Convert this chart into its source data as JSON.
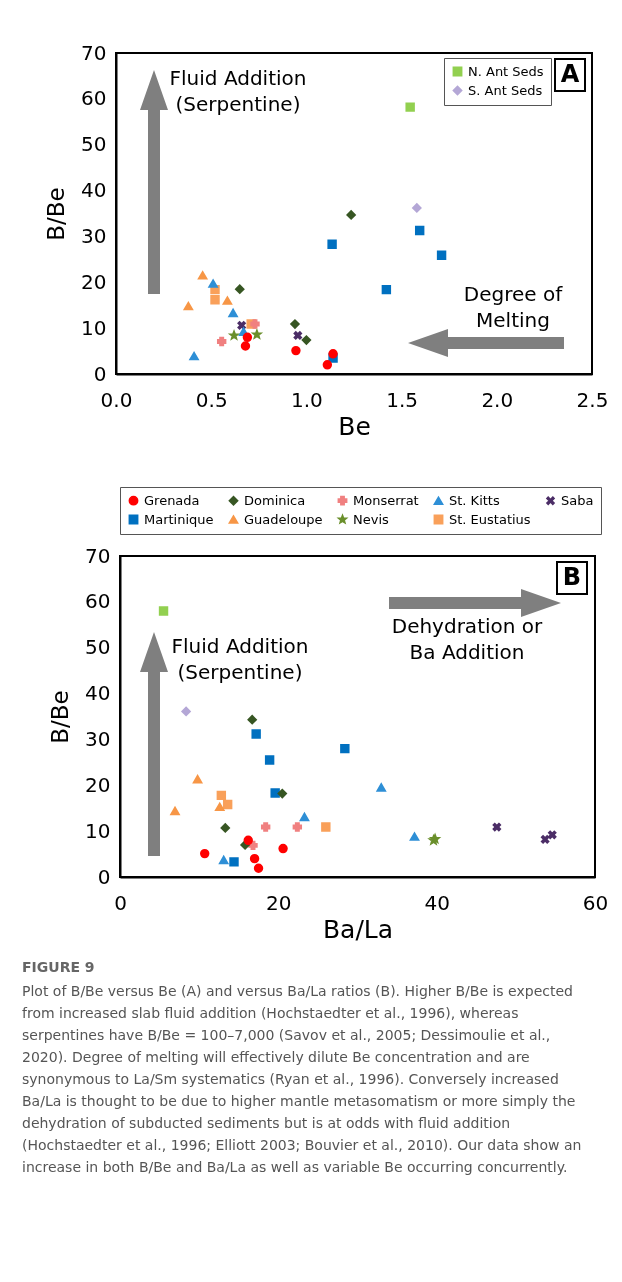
{
  "chart_data": [
    {
      "type": "scatter",
      "xlabel": "Be",
      "ylabel": "B/Be",
      "xlim": [
        0,
        2.5
      ],
      "ylim": [
        0,
        70
      ],
      "xticks": [
        {
          "value": 0,
          "label": "0.0"
        },
        {
          "value": 0.5,
          "label": "0.5"
        },
        {
          "value": 1,
          "label": "1.0"
        },
        {
          "value": 1.5,
          "label": "1.5"
        },
        {
          "value": 2,
          "label": "2.0"
        },
        {
          "value": 2.5,
          "label": "2.5"
        }
      ],
      "yticks": [
        0,
        10,
        20,
        30,
        40,
        50,
        60,
        70
      ],
      "legend": "top right",
      "annotations": [
        "Fluid Addition\n(Serpentine)",
        "Degree of\nMelting",
        "A"
      ],
      "series": [
        {
          "color": "#ff0000",
          "marker": "circle",
          "x": [
            0.68,
            0.69,
            0.945,
            1.11,
            1.14
          ],
          "values": [
            6.1,
            8,
            5.1,
            2,
            4.4
          ]
        },
        {
          "color": "#375623",
          "marker": "diamond",
          "x": [
            0.65,
            1.235,
            0.94,
            1.0
          ],
          "values": [
            18.5,
            34.7,
            10.9,
            7.4
          ]
        },
        {
          "color": "#f08080",
          "marker": "plus",
          "x": [
            0.555,
            0.73
          ],
          "values": [
            7.1,
            10.9
          ]
        },
        {
          "color": "#2e8fd6",
          "marker": "triangle",
          "x": [
            0.41,
            0.51,
            0.615,
            0.67
          ],
          "values": [
            3.9,
            19.7,
            13.3,
            9.2
          ]
        },
        {
          "color": "#4b2d66",
          "marker": "cross",
          "x": [
            0.66,
            0.955
          ],
          "values": [
            10.6,
            8.4
          ]
        },
        {
          "color": "#0070c0",
          "marker": "square",
          "x": [
            1.135,
            1.595,
            1.71,
            1.42,
            1.14
          ],
          "values": [
            28.3,
            31.3,
            25.9,
            18.4,
            3.5
          ]
        },
        {
          "color": "#f79646",
          "marker": "triangle",
          "x": [
            0.455,
            0.38,
            0.585
          ],
          "values": [
            21.5,
            14.8,
            16
          ]
        },
        {
          "color": "#6a8f2b",
          "marker": "star",
          "x": [
            0.62,
            0.74
          ],
          "values": [
            8.4,
            8.6
          ]
        },
        {
          "color": "#f9a05a",
          "marker": "square",
          "x": [
            0.52,
            0.52,
            0.71
          ],
          "values": [
            18.4,
            16.2,
            10.9
          ]
        },
        {
          "name": "N. Ant Seds",
          "color": "#92d050",
          "marker": "square",
          "x": [
            1.545
          ],
          "values": [
            58.2
          ]
        },
        {
          "name": "S. Ant Seds",
          "color": "#b4a7d6",
          "marker": "diamond",
          "x": [
            1.58
          ],
          "values": [
            36.2
          ]
        }
      ]
    },
    {
      "type": "scatter",
      "xlabel": "Ba/La",
      "ylabel": "B/Be",
      "xlim": [
        0,
        60
      ],
      "ylim": [
        0,
        70
      ],
      "xticks": [
        0,
        20,
        40,
        60
      ],
      "yticks": [
        0,
        10,
        20,
        30,
        40,
        50,
        60,
        70
      ],
      "legend": "top",
      "annotations": [
        "Fluid Addition\n(Serpentine)",
        "Dehydration or\nBa Addition",
        "B",
        "FIGURE 9",
        "Plot of B/Be versus Be (A) and versus Ba/La ratios (B). Higher B/Be is expected from increased slab fluid addition (Hochstaedter et al., 1996), whereas serpentines have B/Be = 100–7,000 (Savov et al., 2005; Dessimoulie et al., 2020). Degree of melting will effectively dilute Be concentration and are synonymous to La/Sm systematics (Ryan et al., 1996). Conversely increased Ba/La is thought to be due to higher mantle metasomatism or more simply the dehydration of subducted sediments but is at odds with fluid addition (Hochstaedter et al., 1996; Elliott 2003; Bouvier et al., 2010). Our data show an increase in both B/Be and Ba/La as well as variable Be occurring concurrently."
      ],
      "series": [
        {
          "name": "Grenada",
          "color": "#ff0000",
          "marker": "circle",
          "x": [
            10.7,
            16.2,
            17.0,
            17.5,
            20.6
          ],
          "values": [
            5.1,
            8,
            4,
            1.9,
            6.2
          ]
        },
        {
          "name": "Dominica",
          "color": "#375623",
          "marker": "diamond",
          "x": [
            16.7,
            13.3,
            20.5,
            15.8
          ],
          "values": [
            34.3,
            10.7,
            18.2,
            7
          ]
        },
        {
          "name": "Monserrat",
          "color": "#f08080",
          "marker": "plus",
          "x": [
            18.4,
            22.4,
            16.8
          ],
          "values": [
            10.9,
            10.9,
            6.9
          ]
        },
        {
          "name": "St. Kitts",
          "color": "#2e8fd6",
          "marker": "triangle",
          "x": [
            13.1,
            23.3,
            33.0,
            37.2
          ],
          "values": [
            3.7,
            13.1,
            19.5,
            8.8
          ]
        },
        {
          "name": "Saba",
          "color": "#4b2d66",
          "marker": "cross",
          "x": [
            47.6,
            53.7,
            54.6
          ],
          "values": [
            10.9,
            8.2,
            9.2
          ]
        },
        {
          "name": "Martinique",
          "color": "#0070c0",
          "marker": "square",
          "x": [
            17.2,
            18.9,
            28.4,
            19.6,
            14.4
          ],
          "values": [
            31.2,
            25.5,
            28,
            18.3,
            3.3
          ]
        },
        {
          "name": "Guadeloupe",
          "color": "#f79646",
          "marker": "triangle",
          "x": [
            9.8,
            6.95,
            12.6
          ],
          "values": [
            21.3,
            14.4,
            15.3
          ]
        },
        {
          "name": "Nevis",
          "color": "#6a8f2b",
          "marker": "star",
          "x": [
            39.6,
            39.8
          ],
          "values": [
            8,
            8.3
          ]
        },
        {
          "name": "St. Eustatius",
          "color": "#f9a05a",
          "marker": "square",
          "x": [
            12.8,
            13.6,
            26.0
          ],
          "values": [
            17.8,
            15.8,
            10.9
          ]
        },
        {
          "color": "#92d050",
          "marker": "square",
          "x": [
            5.5
          ],
          "values": [
            58
          ]
        },
        {
          "color": "#b4a7d6",
          "marker": "diamond",
          "x": [
            8.35
          ],
          "values": [
            36.1
          ]
        }
      ]
    }
  ]
}
